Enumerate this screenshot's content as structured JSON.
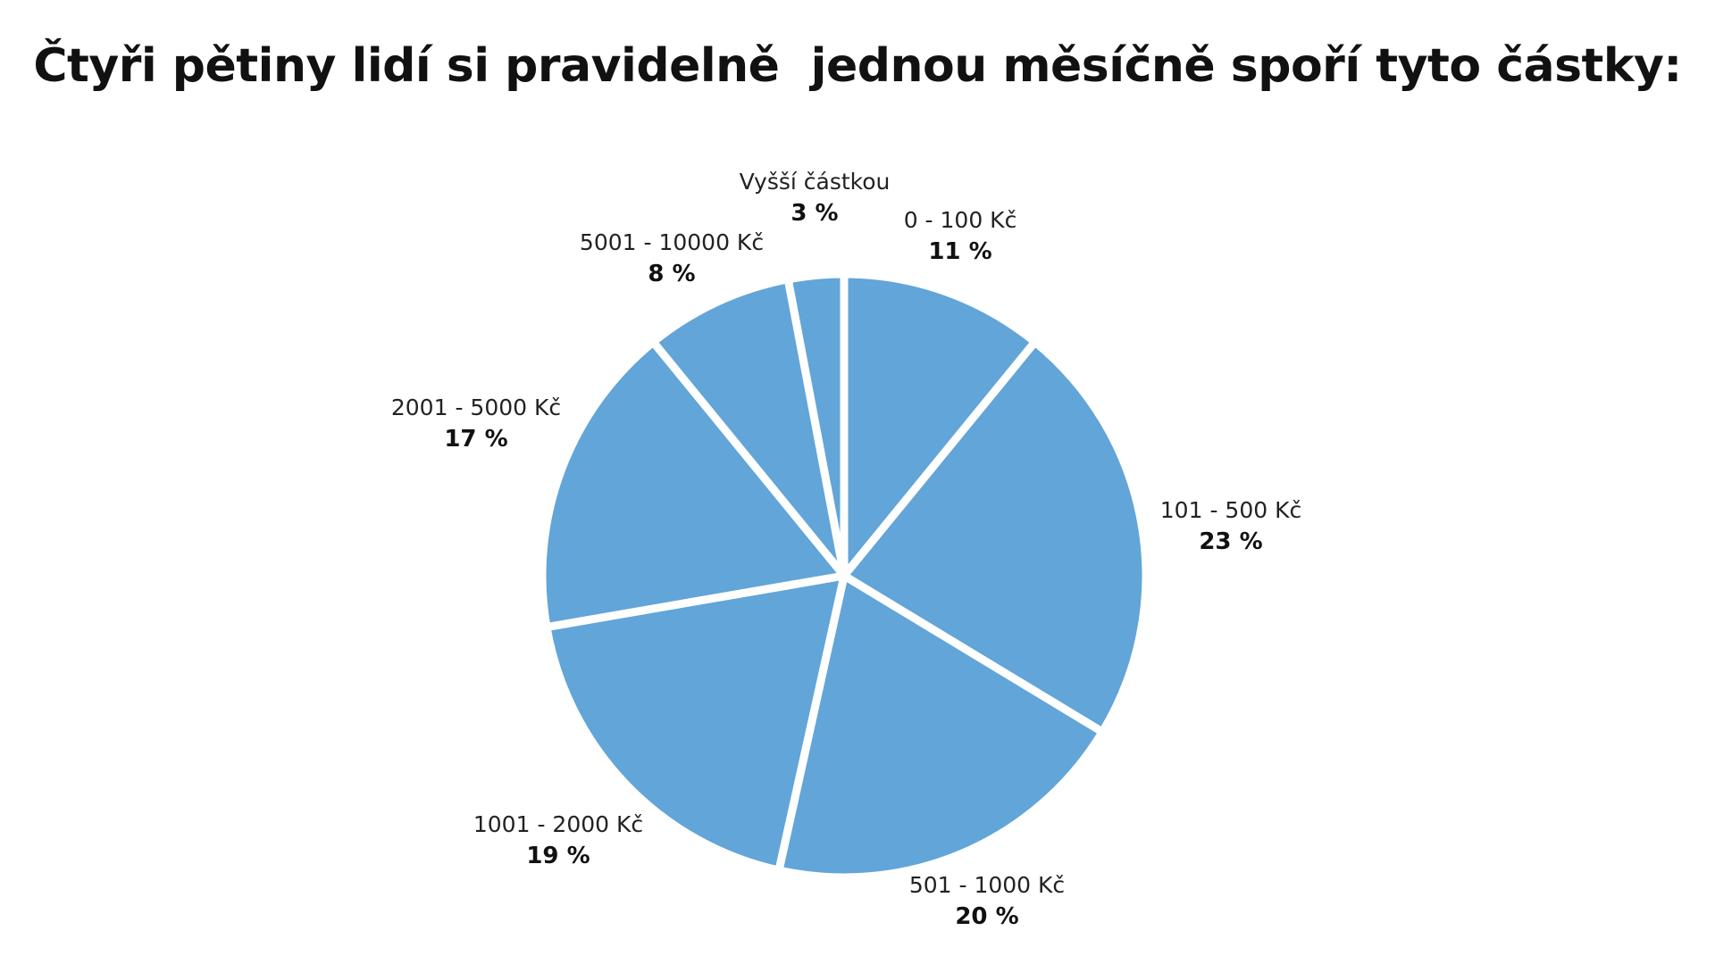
{
  "chart_data": {
    "type": "pie",
    "title": "Čtyři pětiny lidí si pravidelně  jednou měsíčně spoří tyto částky:",
    "color": "#62A5D8",
    "slices": [
      {
        "label": "0 - 100 Kč",
        "value": 11,
        "value_text": "11 %"
      },
      {
        "label": "101 - 500 Kč",
        "value": 23,
        "value_text": "23 %"
      },
      {
        "label": "501 - 1000 Kč",
        "value": 20,
        "value_text": "20 %"
      },
      {
        "label": "1001 - 2000 Kč",
        "value": 19,
        "value_text": "19 %"
      },
      {
        "label": "2001 - 5000 Kč",
        "value": 17,
        "value_text": "17 %"
      },
      {
        "label": "5001 - 10000 Kč",
        "value": 8,
        "value_text": "8 %"
      },
      {
        "label": "Vyšší částkou",
        "value": 3,
        "value_text": "3 %"
      }
    ]
  }
}
